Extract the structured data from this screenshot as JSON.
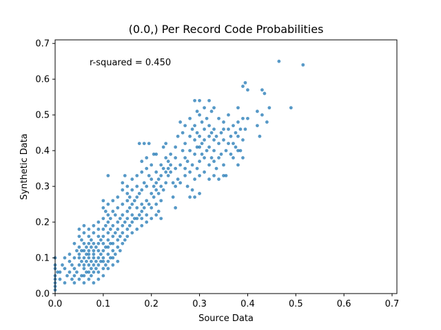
{
  "chart_data": {
    "type": "scatter",
    "title": "(0.0,) Per Record Code Probabilities",
    "xlabel": "Source Data",
    "ylabel": "Synthetic Data",
    "annotation": "r-squared = 0.450",
    "xlim": [
      0.0,
      0.71
    ],
    "ylim": [
      0.0,
      0.71
    ],
    "xticks": [
      "0.0",
      "0.1",
      "0.2",
      "0.3",
      "0.4",
      "0.5",
      "0.6",
      "0.7"
    ],
    "yticks": [
      "0.0",
      "0.1",
      "0.2",
      "0.3",
      "0.4",
      "0.5",
      "0.6",
      "0.7"
    ],
    "grid": false,
    "marker_color": "#1f77b4",
    "points": [
      [
        0.0,
        0.01
      ],
      [
        0.0,
        0.02
      ],
      [
        0.0,
        0.03
      ],
      [
        0.0,
        0.04
      ],
      [
        0.0,
        0.05
      ],
      [
        0.0,
        0.07
      ],
      [
        0.0,
        0.08
      ],
      [
        0.0,
        0.1
      ],
      [
        0.005,
        0.06
      ],
      [
        0.01,
        0.04
      ],
      [
        0.01,
        0.06
      ],
      [
        0.015,
        0.08
      ],
      [
        0.02,
        0.03
      ],
      [
        0.02,
        0.07
      ],
      [
        0.02,
        0.1
      ],
      [
        0.025,
        0.05
      ],
      [
        0.03,
        0.06
      ],
      [
        0.03,
        0.09
      ],
      [
        0.03,
        0.11
      ],
      [
        0.035,
        0.04
      ],
      [
        0.035,
        0.08
      ],
      [
        0.04,
        0.03
      ],
      [
        0.04,
        0.05
      ],
      [
        0.04,
        0.07
      ],
      [
        0.04,
        0.1
      ],
      [
        0.04,
        0.14
      ],
      [
        0.045,
        0.06
      ],
      [
        0.045,
        0.12
      ],
      [
        0.05,
        0.04
      ],
      [
        0.05,
        0.08
      ],
      [
        0.05,
        0.1
      ],
      [
        0.05,
        0.11
      ],
      [
        0.05,
        0.13
      ],
      [
        0.05,
        0.16
      ],
      [
        0.05,
        0.18
      ],
      [
        0.055,
        0.05
      ],
      [
        0.055,
        0.09
      ],
      [
        0.055,
        0.12
      ],
      [
        0.055,
        0.15
      ],
      [
        0.06,
        0.03
      ],
      [
        0.06,
        0.05
      ],
      [
        0.06,
        0.07
      ],
      [
        0.06,
        0.08
      ],
      [
        0.06,
        0.1
      ],
      [
        0.06,
        0.12
      ],
      [
        0.06,
        0.14
      ],
      [
        0.06,
        0.17
      ],
      [
        0.06,
        0.19
      ],
      [
        0.065,
        0.06
      ],
      [
        0.065,
        0.09
      ],
      [
        0.065,
        0.11
      ],
      [
        0.065,
        0.13
      ],
      [
        0.07,
        0.04
      ],
      [
        0.07,
        0.06
      ],
      [
        0.07,
        0.08
      ],
      [
        0.07,
        0.1
      ],
      [
        0.07,
        0.11
      ],
      [
        0.07,
        0.12
      ],
      [
        0.07,
        0.14
      ],
      [
        0.07,
        0.16
      ],
      [
        0.07,
        0.18
      ],
      [
        0.075,
        0.05
      ],
      [
        0.075,
        0.07
      ],
      [
        0.075,
        0.09
      ],
      [
        0.075,
        0.13
      ],
      [
        0.075,
        0.15
      ],
      [
        0.08,
        0.03
      ],
      [
        0.08,
        0.06
      ],
      [
        0.08,
        0.08
      ],
      [
        0.08,
        0.1
      ],
      [
        0.08,
        0.11
      ],
      [
        0.08,
        0.12
      ],
      [
        0.08,
        0.14
      ],
      [
        0.08,
        0.17
      ],
      [
        0.08,
        0.19
      ],
      [
        0.085,
        0.07
      ],
      [
        0.085,
        0.09
      ],
      [
        0.085,
        0.13
      ],
      [
        0.09,
        0.04
      ],
      [
        0.09,
        0.06
      ],
      [
        0.09,
        0.08
      ],
      [
        0.09,
        0.1
      ],
      [
        0.09,
        0.12
      ],
      [
        0.09,
        0.14
      ],
      [
        0.09,
        0.16
      ],
      [
        0.09,
        0.18
      ],
      [
        0.09,
        0.2
      ],
      [
        0.095,
        0.09
      ],
      [
        0.095,
        0.11
      ],
      [
        0.095,
        0.15
      ],
      [
        0.1,
        0.05
      ],
      [
        0.1,
        0.07
      ],
      [
        0.1,
        0.09
      ],
      [
        0.1,
        0.1
      ],
      [
        0.1,
        0.12
      ],
      [
        0.1,
        0.14
      ],
      [
        0.1,
        0.16
      ],
      [
        0.1,
        0.18
      ],
      [
        0.1,
        0.21
      ],
      [
        0.1,
        0.24
      ],
      [
        0.1,
        0.26
      ],
      [
        0.105,
        0.08
      ],
      [
        0.105,
        0.13
      ],
      [
        0.105,
        0.19
      ],
      [
        0.105,
        0.23
      ],
      [
        0.11,
        0.07
      ],
      [
        0.11,
        0.09
      ],
      [
        0.11,
        0.11
      ],
      [
        0.11,
        0.13
      ],
      [
        0.11,
        0.15
      ],
      [
        0.11,
        0.17
      ],
      [
        0.11,
        0.2
      ],
      [
        0.11,
        0.22
      ],
      [
        0.11,
        0.25
      ],
      [
        0.11,
        0.33
      ],
      [
        0.115,
        0.1
      ],
      [
        0.115,
        0.14
      ],
      [
        0.115,
        0.18
      ],
      [
        0.115,
        0.21
      ],
      [
        0.12,
        0.08
      ],
      [
        0.12,
        0.1
      ],
      [
        0.12,
        0.12
      ],
      [
        0.12,
        0.14
      ],
      [
        0.12,
        0.16
      ],
      [
        0.12,
        0.19
      ],
      [
        0.12,
        0.23
      ],
      [
        0.12,
        0.26
      ],
      [
        0.125,
        0.11
      ],
      [
        0.125,
        0.17
      ],
      [
        0.125,
        0.22
      ],
      [
        0.13,
        0.09
      ],
      [
        0.13,
        0.13
      ],
      [
        0.13,
        0.15
      ],
      [
        0.13,
        0.18
      ],
      [
        0.13,
        0.2
      ],
      [
        0.13,
        0.24
      ],
      [
        0.13,
        0.27
      ],
      [
        0.135,
        0.12
      ],
      [
        0.135,
        0.16
      ],
      [
        0.135,
        0.21
      ],
      [
        0.14,
        0.14
      ],
      [
        0.14,
        0.17
      ],
      [
        0.14,
        0.19
      ],
      [
        0.14,
        0.22
      ],
      [
        0.14,
        0.25
      ],
      [
        0.14,
        0.29
      ],
      [
        0.14,
        0.31
      ],
      [
        0.145,
        0.15
      ],
      [
        0.145,
        0.2
      ],
      [
        0.145,
        0.33
      ],
      [
        0.15,
        0.16
      ],
      [
        0.15,
        0.18
      ],
      [
        0.15,
        0.21
      ],
      [
        0.15,
        0.23
      ],
      [
        0.15,
        0.26
      ],
      [
        0.15,
        0.28
      ],
      [
        0.15,
        0.3
      ],
      [
        0.155,
        0.19
      ],
      [
        0.155,
        0.24
      ],
      [
        0.155,
        0.27
      ],
      [
        0.16,
        0.17
      ],
      [
        0.16,
        0.2
      ],
      [
        0.16,
        0.22
      ],
      [
        0.16,
        0.25
      ],
      [
        0.16,
        0.29
      ],
      [
        0.16,
        0.32
      ],
      [
        0.165,
        0.21
      ],
      [
        0.165,
        0.26
      ],
      [
        0.17,
        0.18
      ],
      [
        0.17,
        0.21
      ],
      [
        0.17,
        0.24
      ],
      [
        0.17,
        0.27
      ],
      [
        0.17,
        0.3
      ],
      [
        0.17,
        0.33
      ],
      [
        0.175,
        0.22
      ],
      [
        0.175,
        0.28
      ],
      [
        0.175,
        0.42
      ],
      [
        0.18,
        0.19
      ],
      [
        0.18,
        0.21
      ],
      [
        0.18,
        0.23
      ],
      [
        0.18,
        0.25
      ],
      [
        0.18,
        0.29
      ],
      [
        0.18,
        0.34
      ],
      [
        0.18,
        0.37
      ],
      [
        0.185,
        0.24
      ],
      [
        0.185,
        0.31
      ],
      [
        0.185,
        0.42
      ],
      [
        0.19,
        0.2
      ],
      [
        0.19,
        0.22
      ],
      [
        0.19,
        0.26
      ],
      [
        0.19,
        0.3
      ],
      [
        0.19,
        0.35
      ],
      [
        0.19,
        0.38
      ],
      [
        0.195,
        0.25
      ],
      [
        0.195,
        0.33
      ],
      [
        0.195,
        0.42
      ],
      [
        0.2,
        0.21
      ],
      [
        0.2,
        0.24
      ],
      [
        0.2,
        0.28
      ],
      [
        0.2,
        0.32
      ],
      [
        0.2,
        0.36
      ],
      [
        0.205,
        0.27
      ],
      [
        0.205,
        0.3
      ],
      [
        0.205,
        0.39
      ],
      [
        0.21,
        0.22
      ],
      [
        0.21,
        0.25
      ],
      [
        0.21,
        0.29
      ],
      [
        0.21,
        0.31
      ],
      [
        0.21,
        0.34
      ],
      [
        0.21,
        0.39
      ],
      [
        0.215,
        0.23
      ],
      [
        0.215,
        0.28
      ],
      [
        0.215,
        0.32
      ],
      [
        0.22,
        0.21
      ],
      [
        0.22,
        0.26
      ],
      [
        0.22,
        0.3
      ],
      [
        0.22,
        0.33
      ],
      [
        0.22,
        0.36
      ],
      [
        0.225,
        0.29
      ],
      [
        0.225,
        0.35
      ],
      [
        0.225,
        0.41
      ],
      [
        0.23,
        0.31
      ],
      [
        0.23,
        0.34
      ],
      [
        0.23,
        0.38
      ],
      [
        0.23,
        0.42
      ],
      [
        0.235,
        0.33
      ],
      [
        0.235,
        0.35
      ],
      [
        0.235,
        0.37
      ],
      [
        0.24,
        0.34
      ],
      [
        0.24,
        0.36
      ],
      [
        0.24,
        0.39
      ],
      [
        0.245,
        0.27
      ],
      [
        0.245,
        0.31
      ],
      [
        0.25,
        0.24
      ],
      [
        0.25,
        0.3
      ],
      [
        0.25,
        0.35
      ],
      [
        0.25,
        0.38
      ],
      [
        0.25,
        0.41
      ],
      [
        0.255,
        0.32
      ],
      [
        0.255,
        0.44
      ],
      [
        0.26,
        0.31
      ],
      [
        0.26,
        0.36
      ],
      [
        0.26,
        0.48
      ],
      [
        0.265,
        0.4
      ],
      [
        0.265,
        0.45
      ],
      [
        0.27,
        0.33
      ],
      [
        0.27,
        0.35
      ],
      [
        0.27,
        0.38
      ],
      [
        0.27,
        0.42
      ],
      [
        0.27,
        0.47
      ],
      [
        0.275,
        0.3
      ],
      [
        0.275,
        0.37
      ],
      [
        0.28,
        0.27
      ],
      [
        0.28,
        0.34
      ],
      [
        0.28,
        0.4
      ],
      [
        0.28,
        0.44
      ],
      [
        0.28,
        0.49
      ],
      [
        0.285,
        0.29
      ],
      [
        0.285,
        0.36
      ],
      [
        0.285,
        0.46
      ],
      [
        0.29,
        0.27
      ],
      [
        0.29,
        0.32
      ],
      [
        0.29,
        0.39
      ],
      [
        0.29,
        0.43
      ],
      [
        0.29,
        0.47
      ],
      [
        0.29,
        0.54
      ],
      [
        0.295,
        0.35
      ],
      [
        0.295,
        0.41
      ],
      [
        0.295,
        0.45
      ],
      [
        0.295,
        0.51
      ],
      [
        0.3,
        0.28
      ],
      [
        0.3,
        0.33
      ],
      [
        0.3,
        0.37
      ],
      [
        0.3,
        0.41
      ],
      [
        0.3,
        0.44
      ],
      [
        0.3,
        0.5
      ],
      [
        0.3,
        0.54
      ],
      [
        0.305,
        0.39
      ],
      [
        0.305,
        0.42
      ],
      [
        0.305,
        0.48
      ],
      [
        0.31,
        0.34
      ],
      [
        0.31,
        0.38
      ],
      [
        0.31,
        0.43
      ],
      [
        0.31,
        0.46
      ],
      [
        0.31,
        0.52
      ],
      [
        0.315,
        0.4
      ],
      [
        0.315,
        0.49
      ],
      [
        0.32,
        0.32
      ],
      [
        0.32,
        0.36
      ],
      [
        0.32,
        0.41
      ],
      [
        0.32,
        0.44
      ],
      [
        0.32,
        0.47
      ],
      [
        0.32,
        0.54
      ],
      [
        0.325,
        0.38
      ],
      [
        0.325,
        0.45
      ],
      [
        0.325,
        0.51
      ],
      [
        0.33,
        0.33
      ],
      [
        0.33,
        0.37
      ],
      [
        0.33,
        0.4
      ],
      [
        0.33,
        0.43
      ],
      [
        0.33,
        0.46
      ],
      [
        0.33,
        0.52
      ],
      [
        0.335,
        0.35
      ],
      [
        0.335,
        0.44
      ],
      [
        0.34,
        0.32
      ],
      [
        0.34,
        0.38
      ],
      [
        0.34,
        0.42
      ],
      [
        0.34,
        0.49
      ],
      [
        0.345,
        0.39
      ],
      [
        0.345,
        0.45
      ],
      [
        0.35,
        0.33
      ],
      [
        0.35,
        0.36
      ],
      [
        0.35,
        0.43
      ],
      [
        0.35,
        0.46
      ],
      [
        0.35,
        0.48
      ],
      [
        0.355,
        0.33
      ],
      [
        0.355,
        0.4
      ],
      [
        0.36,
        0.42
      ],
      [
        0.36,
        0.46
      ],
      [
        0.36,
        0.5
      ],
      [
        0.365,
        0.39
      ],
      [
        0.365,
        0.44
      ],
      [
        0.37,
        0.38
      ],
      [
        0.37,
        0.42
      ],
      [
        0.37,
        0.47
      ],
      [
        0.375,
        0.41
      ],
      [
        0.375,
        0.45
      ],
      [
        0.38,
        0.36
      ],
      [
        0.38,
        0.4
      ],
      [
        0.38,
        0.44
      ],
      [
        0.38,
        0.48
      ],
      [
        0.38,
        0.52
      ],
      [
        0.385,
        0.4
      ],
      [
        0.385,
        0.46
      ],
      [
        0.39,
        0.38
      ],
      [
        0.39,
        0.43
      ],
      [
        0.39,
        0.49
      ],
      [
        0.39,
        0.58
      ],
      [
        0.395,
        0.46
      ],
      [
        0.395,
        0.59
      ],
      [
        0.4,
        0.49
      ],
      [
        0.4,
        0.57
      ],
      [
        0.42,
        0.47
      ],
      [
        0.42,
        0.51
      ],
      [
        0.425,
        0.44
      ],
      [
        0.43,
        0.5
      ],
      [
        0.43,
        0.57
      ],
      [
        0.435,
        0.56
      ],
      [
        0.44,
        0.48
      ],
      [
        0.445,
        0.52
      ],
      [
        0.465,
        0.65
      ],
      [
        0.49,
        0.52
      ],
      [
        0.515,
        0.64
      ]
    ]
  }
}
